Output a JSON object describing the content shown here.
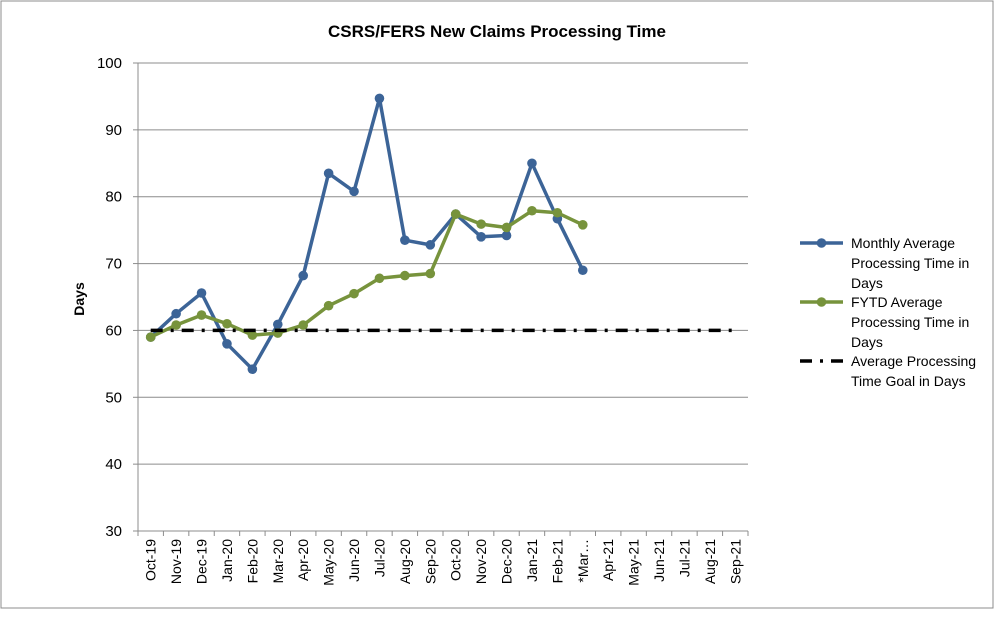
{
  "chart_data": {
    "type": "line",
    "title": "CSRS/FERS New Claims Processing Time",
    "xlabel": "",
    "ylabel": "Days",
    "ylim": [
      30,
      100
    ],
    "yticks": [
      30,
      40,
      50,
      60,
      70,
      80,
      90,
      100
    ],
    "categories": [
      "Oct-19",
      "Nov-19",
      "Dec-19",
      "Jan-20",
      "Feb-20",
      "Mar-20",
      "Apr-20",
      "May-20",
      "Jun-20",
      "Jul-20",
      "Aug-20",
      "Sep-20",
      "Oct-20",
      "Nov-20",
      "Dec-20",
      "Jan-21",
      "Feb-21",
      "*Mar-21",
      "Apr-21",
      "May-21",
      "Jun-21",
      "Jul-21",
      "Aug-21",
      "Sep-21"
    ],
    "category_labels": [
      "Oct-19",
      "Nov-19",
      "Dec-19",
      "Jan-20",
      "Feb-20",
      "Mar-20",
      "Apr-20",
      "May-20",
      "Jun-20",
      "Jul-20",
      "Aug-20",
      "Sep-20",
      "Oct-20",
      "Nov-20",
      "Dec-20",
      "Jan-21",
      "Feb-21",
      "*Mar…",
      "Apr-21",
      "May-21",
      "Jun-21",
      "Jul-21",
      "Aug-21",
      "Sep-21"
    ],
    "grid": true,
    "legend_position": "right",
    "series": [
      {
        "name": "Monthly Average Processing Time in Days",
        "legend_lines": [
          "Monthly Average",
          "Processing Time in",
          "Days"
        ],
        "color": "#3c6497",
        "style": "solid-markers",
        "values": [
          59,
          62.5,
          65.6,
          58,
          54.2,
          60.9,
          68.2,
          83.5,
          80.8,
          94.7,
          73.5,
          72.8,
          77.4,
          74,
          74.2,
          85,
          76.7,
          69,
          null,
          null,
          null,
          null,
          null,
          null
        ]
      },
      {
        "name": "FYTD Average Processing Time in Days",
        "legend_lines": [
          "FYTD Average",
          "Processing Time in",
          "Days"
        ],
        "color": "#77933c",
        "style": "solid-markers",
        "values": [
          59,
          60.8,
          62.3,
          61,
          59.3,
          59.6,
          60.8,
          63.7,
          65.5,
          67.8,
          68.2,
          68.5,
          77.4,
          75.9,
          75.4,
          77.9,
          77.6,
          75.8,
          null,
          null,
          null,
          null,
          null,
          null
        ]
      },
      {
        "name": "Average Processing Time Goal in Days",
        "legend_lines": [
          "Average Processing",
          "Time Goal in Days"
        ],
        "color": "#000000",
        "style": "dash-dot",
        "values": [
          60,
          60,
          60,
          60,
          60,
          60,
          60,
          60,
          60,
          60,
          60,
          60,
          60,
          60,
          60,
          60,
          60,
          60,
          60,
          60,
          60,
          60,
          60,
          60
        ]
      }
    ]
  }
}
